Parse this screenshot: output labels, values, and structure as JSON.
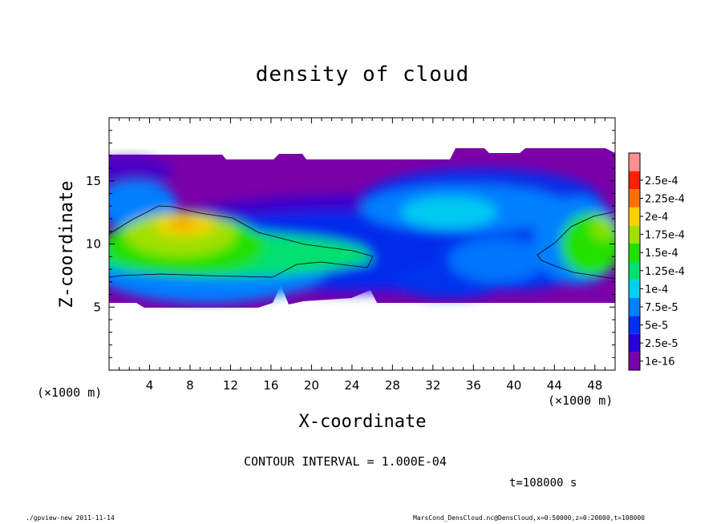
{
  "chart_data": {
    "type": "heatmap",
    "title": "density of cloud",
    "xlabel": "X-coordinate",
    "ylabel": "Z-coordinate",
    "x_unit_label": "(×1000 m)",
    "y_unit_label": "(×1000 m)",
    "xlim": [
      0,
      50
    ],
    "ylim": [
      0,
      20
    ],
    "xticks": [
      4,
      8,
      12,
      16,
      20,
      24,
      28,
      32,
      36,
      40,
      44,
      48
    ],
    "yticks": [
      5,
      10,
      15
    ],
    "colorbar": {
      "labels": [
        "1e-16",
        "2.5e-5",
        "5e-5",
        "7.5e-5",
        "1e-4",
        "1.25e-4",
        "1.5e-4",
        "1.75e-4",
        "2e-4",
        "2.25e-4",
        "2.5e-4"
      ],
      "levels": [
        0,
        2.5e-05,
        5e-05,
        7.5e-05,
        0.0001,
        0.000125,
        0.00015,
        0.000175,
        0.0002,
        0.000225,
        0.00025
      ],
      "colors": [
        "#7a00a8",
        "#2a00d8",
        "#0030f0",
        "#0080ff",
        "#00d0f0",
        "#00e070",
        "#20e000",
        "#a0e000",
        "#ffd000",
        "#ff7000",
        "#ff2000",
        "#ff9090"
      ]
    },
    "contour_levels": [
      0.0001
    ],
    "footer_left": "./gpview-new  2011-11-14",
    "footer_right": "MarsCond_DensCloud.nc@DensCloud,x=0:50000,z=0:20000,t=108000"
  },
  "contour_interval": "CONTOUR INTERVAL = 1.000E-04",
  "time_label": "t=108000 s"
}
